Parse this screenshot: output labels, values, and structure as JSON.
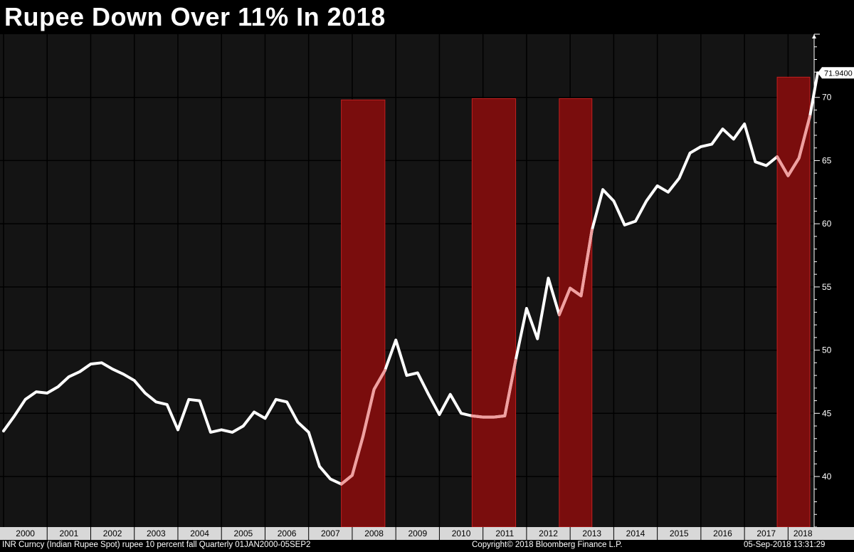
{
  "title": "Rupee Down Over 11% In 2018",
  "footer": {
    "left": "INR Curncy (Indian Rupee Spot) rupee 10 percent fall  Quarterly 01JAN2000-05SEP2",
    "center": "Copyright© 2018 Bloomberg Finance L.P.",
    "right": "05-Sep-2018 13:31:29"
  },
  "chart_data": {
    "type": "line",
    "title": "Rupee Down Over 11% In 2018",
    "series": [
      {
        "x": [
          2000.0,
          2000.25,
          2000.5,
          2000.75,
          2001.0,
          2001.25,
          2001.5,
          2001.75,
          2002.0,
          2002.25,
          2002.5,
          2002.75,
          2003.0,
          2003.25,
          2003.5,
          2003.75,
          2004.0,
          2004.25,
          2004.5,
          2004.75,
          2005.0,
          2005.25,
          2005.5,
          2005.75,
          2006.0,
          2006.25,
          2006.5,
          2006.75,
          2007.0,
          2007.25,
          2007.5,
          2007.75,
          2008.0,
          2008.25,
          2008.5,
          2008.75,
          2009.0,
          2009.25,
          2009.5,
          2009.75,
          2010.0,
          2010.25,
          2010.5,
          2010.75,
          2011.0,
          2011.25,
          2011.5,
          2011.75,
          2012.0,
          2012.25,
          2012.5,
          2012.75,
          2013.0,
          2013.25,
          2013.5,
          2013.75,
          2014.0,
          2014.25,
          2014.5,
          2014.75,
          2015.0,
          2015.25,
          2015.5,
          2015.75,
          2016.0,
          2016.25,
          2016.5,
          2016.75,
          2017.0,
          2017.25,
          2017.5,
          2017.75,
          2018.0,
          2018.25,
          2018.5,
          2018.68
        ],
        "values": [
          43.6,
          44.8,
          46.1,
          46.7,
          46.6,
          47.1,
          47.9,
          48.3,
          48.9,
          49.0,
          48.5,
          48.1,
          47.6,
          46.6,
          45.9,
          45.7,
          43.7,
          46.1,
          46.0,
          43.5,
          43.7,
          43.5,
          44.0,
          45.1,
          44.6,
          46.1,
          45.9,
          44.3,
          43.5,
          40.8,
          39.8,
          39.4,
          40.1,
          43.2,
          46.9,
          48.4,
          50.8,
          48.0,
          48.2,
          46.5,
          44.9,
          46.5,
          45.0,
          44.8,
          44.7,
          44.7,
          44.8,
          49.2,
          53.3,
          50.9,
          55.7,
          52.8,
          54.9,
          54.3,
          59.5,
          62.7,
          61.8,
          59.9,
          60.2,
          61.8,
          63.0,
          62.5,
          63.6,
          65.6,
          66.1,
          66.3,
          67.5,
          66.7,
          67.9,
          64.9,
          64.6,
          65.3,
          63.8,
          65.2,
          68.5,
          71.94
        ]
      }
    ],
    "x_ticks": [
      "2000",
      "2001",
      "2002",
      "2003",
      "2004",
      "2005",
      "2006",
      "2007",
      "2008",
      "2009",
      "2010",
      "2011",
      "2012",
      "2013",
      "2014",
      "2015",
      "2016",
      "2017",
      "2018"
    ],
    "y_ticks": [
      40,
      45,
      50,
      55,
      60,
      65,
      70
    ],
    "ylim": [
      36,
      75
    ],
    "xlim": [
      2000,
      2018.68
    ],
    "last_value_label": "71.9400",
    "highlight_periods": [
      {
        "start": 2007.75,
        "end": 2008.75,
        "level": 69.8,
        "bottom": 36.0
      },
      {
        "start": 2010.75,
        "end": 2011.75,
        "level": 69.9,
        "bottom": 36.0
      },
      {
        "start": 2012.75,
        "end": 2013.5,
        "level": 69.9,
        "bottom": 36.0
      },
      {
        "start": 2017.75,
        "end": 2018.5,
        "level": 71.6,
        "bottom": 36.0
      }
    ],
    "colors": {
      "background": "#141414",
      "grid": "#000000",
      "line": "#ffffff",
      "highlight_fill": "#7a0d0d",
      "highlight_line": "#f0a0a0",
      "x_axis_bar": "#d8d8d8"
    },
    "grid": true
  }
}
